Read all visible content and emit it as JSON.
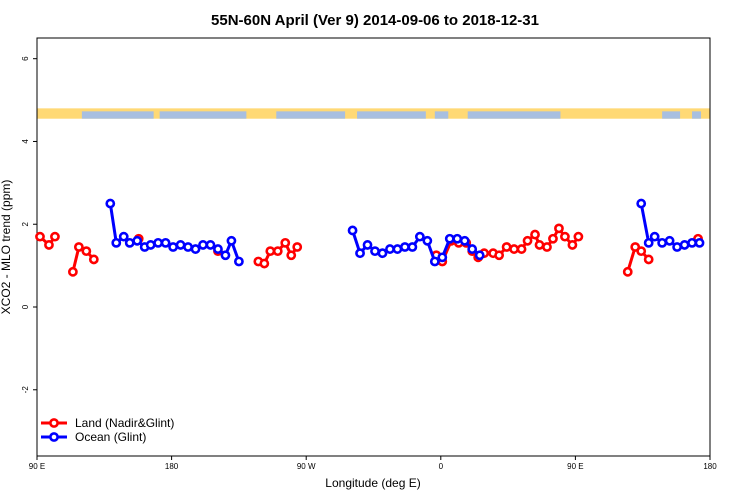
{
  "chart_data": {
    "type": "line",
    "title": "55N-60N April (Ver 9)   2014-09-06 to 2018-12-31",
    "xlabel": "Longitude (deg E)",
    "ylabel": "XCO2 - MLO trend (ppm)",
    "xlim": [
      90,
      540
    ],
    "ylim": [
      -3.6,
      6.5
    ],
    "x_ticks": [
      {
        "value": 90,
        "label": "90 E"
      },
      {
        "value": 180,
        "label": "180"
      },
      {
        "value": 270,
        "label": "90 W"
      },
      {
        "value": 360,
        "label": "0"
      },
      {
        "value": 450,
        "label": "90 E"
      },
      {
        "value": 540,
        "label": "180"
      }
    ],
    "y_ticks": [
      {
        "value": -2,
        "label": "-2"
      },
      {
        "value": 0,
        "label": "0"
      },
      {
        "value": 2,
        "label": "2"
      },
      {
        "value": 4,
        "label": "4"
      },
      {
        "value": 6,
        "label": "6"
      }
    ],
    "legend_position": "bottom-left",
    "land_band": {
      "ymin": 4.55,
      "ymax": 4.8,
      "land_color": "#ffd975",
      "ocean_color": "#a8bfe0"
    },
    "series": [
      {
        "name": "Land (Nadir&Glint)",
        "color": "#ff0000",
        "segments": [
          [
            [
              92,
              1.7
            ],
            [
              98,
              1.5
            ],
            [
              102,
              1.7
            ]
          ],
          [
            [
              114,
              0.85
            ],
            [
              118,
              1.45
            ],
            [
              123,
              1.35
            ],
            [
              128,
              1.15
            ]
          ],
          [
            [
              158,
              1.65
            ]
          ],
          [
            [
              211,
              1.35
            ]
          ],
          [
            [
              238,
              1.1
            ],
            [
              242,
              1.05
            ],
            [
              246,
              1.35
            ],
            [
              251,
              1.35
            ],
            [
              256,
              1.55
            ],
            [
              260,
              1.25
            ],
            [
              264,
              1.45
            ]
          ],
          [
            [
              357,
              1.25
            ],
            [
              361,
              1.1
            ],
            [
              367,
              1.6
            ],
            [
              372,
              1.55
            ],
            [
              377,
              1.55
            ],
            [
              381,
              1.35
            ],
            [
              385,
              1.2
            ],
            [
              389,
              1.3
            ],
            [
              395,
              1.3
            ],
            [
              399,
              1.25
            ],
            [
              404,
              1.45
            ],
            [
              409,
              1.4
            ],
            [
              414,
              1.4
            ],
            [
              418,
              1.6
            ],
            [
              423,
              1.75
            ],
            [
              426,
              1.5
            ],
            [
              431,
              1.45
            ],
            [
              435,
              1.65
            ],
            [
              439,
              1.9
            ],
            [
              443,
              1.7
            ],
            [
              448,
              1.5
            ],
            [
              452,
              1.7
            ]
          ],
          [
            [
              485,
              0.85
            ],
            [
              490,
              1.45
            ],
            [
              494,
              1.35
            ],
            [
              499,
              1.15
            ]
          ],
          [
            [
              532,
              1.65
            ]
          ]
        ]
      },
      {
        "name": "Ocean (Glint)",
        "color": "#0000ff",
        "segments": [
          [
            [
              139,
              2.5
            ],
            [
              143,
              1.55
            ],
            [
              148,
              1.7
            ],
            [
              152,
              1.55
            ],
            [
              157,
              1.6
            ],
            [
              162,
              1.45
            ],
            [
              166,
              1.5
            ],
            [
              171,
              1.55
            ],
            [
              176,
              1.55
            ],
            [
              181,
              1.45
            ],
            [
              186,
              1.5
            ],
            [
              191,
              1.45
            ],
            [
              196,
              1.4
            ],
            [
              201,
              1.5
            ],
            [
              206,
              1.5
            ],
            [
              211,
              1.4
            ],
            [
              216,
              1.25
            ],
            [
              220,
              1.6
            ],
            [
              225,
              1.1
            ]
          ],
          [
            [
              301,
              1.85
            ],
            [
              306,
              1.3
            ],
            [
              311,
              1.5
            ],
            [
              316,
              1.35
            ],
            [
              321,
              1.3
            ],
            [
              326,
              1.4
            ],
            [
              331,
              1.4
            ],
            [
              336,
              1.45
            ],
            [
              341,
              1.45
            ],
            [
              346,
              1.7
            ],
            [
              351,
              1.6
            ],
            [
              356,
              1.1
            ],
            [
              361,
              1.2
            ],
            [
              366,
              1.65
            ],
            [
              371,
              1.65
            ],
            [
              376,
              1.6
            ],
            [
              381,
              1.4
            ],
            [
              386,
              1.25
            ]
          ],
          [
            [
              494,
              2.5
            ],
            [
              499,
              1.55
            ],
            [
              503,
              1.7
            ],
            [
              508,
              1.55
            ],
            [
              513,
              1.6
            ],
            [
              518,
              1.45
            ],
            [
              523,
              1.5
            ],
            [
              528,
              1.55
            ],
            [
              533,
              1.55
            ]
          ]
        ]
      }
    ]
  }
}
